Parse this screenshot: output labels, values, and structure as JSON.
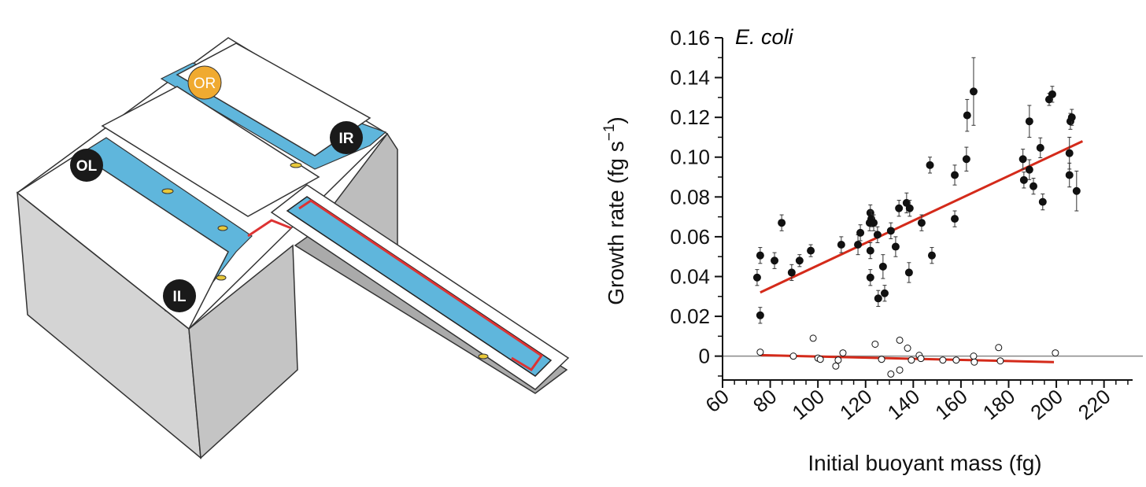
{
  "diagram": {
    "labels": [
      "OL",
      "OR",
      "IL",
      "IR"
    ]
  },
  "chart_data": {
    "type": "scatter",
    "annotation": "E. coli",
    "x_label": "Initial buoyant mass (fg)",
    "y_label": {
      "text": "Growth rate (fg s",
      "sup": "−1",
      "end": ")"
    },
    "xlim": [
      60,
      232
    ],
    "ylim": [
      -0.012,
      0.16
    ],
    "xticks": [
      60,
      80,
      100,
      120,
      140,
      160,
      180,
      200,
      220
    ],
    "yticks": [
      0,
      0.02,
      0.04,
      0.06,
      0.08,
      {
        "value": 0.1,
        "label": "0.10"
      },
      0.12,
      0.14,
      0.16
    ],
    "xminorticks": [
      65,
      70,
      75,
      85,
      90,
      95,
      105,
      110,
      115,
      125,
      130,
      135,
      145,
      150,
      155,
      165,
      170,
      175,
      185,
      190,
      195,
      205,
      210,
      215,
      225,
      230
    ],
    "yminorticks": [
      -0.01,
      0.01,
      0.03,
      0.05,
      0.07,
      0.09,
      0.11,
      0.13,
      0.15
    ],
    "reference_line": 0,
    "series": [
      {
        "filled": true,
        "color": "#111111",
        "x": [
          74.5,
          75.8,
          81.8,
          75.8,
          84.8,
          89,
          92.3,
          97,
          109.8,
          116.8,
          117.8,
          121.7,
          122,
          122.4,
          123.4,
          122,
          122,
          125,
          125.3,
          127.3,
          128,
          130.6,
          132.6,
          134,
          137.2,
          138.5,
          138.2,
          143.5,
          147,
          147.8,
          157.4,
          157.4,
          162.3,
          162.6,
          165.3,
          186,
          186.4,
          188.7,
          188.7,
          190.4,
          193.3,
          194.3,
          197,
          198.3,
          205.9,
          206.5,
          205.5,
          205.5,
          208.5
        ],
        "values": [
          0.0395,
          0.0506,
          0.048,
          0.0205,
          0.067,
          0.042,
          0.048,
          0.053,
          0.056,
          0.056,
          0.062,
          0.067,
          0.072,
          0.069,
          0.067,
          0.053,
          0.0395,
          0.061,
          0.029,
          0.045,
          0.0316,
          0.063,
          0.055,
          0.0743,
          0.077,
          0.0743,
          0.042,
          0.067,
          0.096,
          0.0506,
          0.091,
          0.069,
          0.099,
          0.121,
          0.133,
          0.099,
          0.0885,
          0.118,
          0.0937,
          0.0854,
          0.1047,
          0.0775,
          0.129,
          0.1316,
          0.118,
          0.12,
          0.102,
          0.091,
          0.083
        ],
        "errors": [
          0.004,
          0.004,
          0.004,
          0.004,
          0.004,
          0.004,
          0.003,
          0.003,
          0.004,
          0.005,
          0.004,
          0.004,
          0.004,
          0.004,
          0.004,
          0.004,
          0.004,
          0.004,
          0.004,
          0.006,
          0.004,
          0.004,
          0.005,
          0.004,
          0.005,
          0.004,
          0.005,
          0.004,
          0.004,
          0.004,
          0.005,
          0.004,
          0.006,
          0.008,
          0.017,
          0.005,
          0.004,
          0.008,
          0.005,
          0.004,
          0.005,
          0.004,
          0.003,
          0.004,
          0.004,
          0.004,
          0.008,
          0.006,
          0.01
        ]
      },
      {
        "filled": false,
        "color": "#111111",
        "x": [
          75.8,
          89.7,
          98,
          100,
          101,
          107.5,
          108.5,
          110.5,
          124,
          126.7,
          130.6,
          134.3,
          134.3,
          137.6,
          139.2,
          142.5,
          143.2,
          152.4,
          158,
          165.3,
          165.6,
          175.8,
          176.5,
          199.6
        ],
        "values": [
          0.002,
          0,
          0.009,
          -0.001,
          -0.0016,
          -0.005,
          -0.002,
          0.0016,
          0.006,
          -0.0016,
          -0.009,
          0.008,
          -0.007,
          0.004,
          -0.002,
          0.0004,
          -0.0012,
          -0.002,
          -0.002,
          0,
          -0.003,
          0.0043,
          -0.0024,
          0.0016
        ]
      }
    ],
    "fits": [
      {
        "color": "#d42a1a",
        "x": [
          75.8,
          211
        ],
        "y": [
          0.032,
          0.108
        ]
      },
      {
        "color": "#d42a1a",
        "x": [
          76,
          199
        ],
        "y": [
          0.0005,
          -0.003
        ]
      }
    ]
  }
}
